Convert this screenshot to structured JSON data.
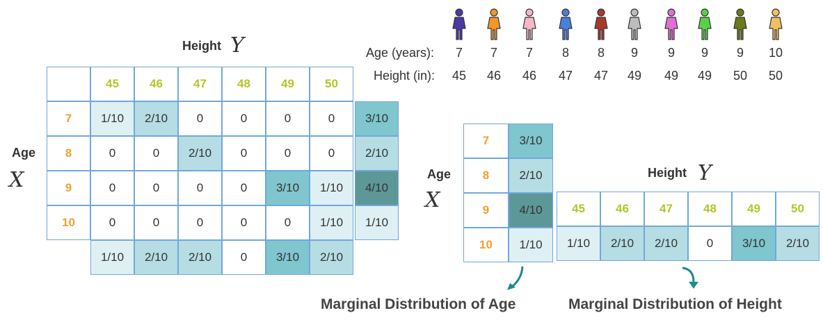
{
  "joint": {
    "height_label": "Height",
    "height_var": "Y",
    "age_label": "Age",
    "age_var": "X",
    "heights": [
      "45",
      "46",
      "47",
      "48",
      "49",
      "50"
    ],
    "ages": [
      "7",
      "8",
      "9",
      "10"
    ],
    "rows": [
      [
        "1/10",
        "2/10",
        "0",
        "0",
        "0",
        "0"
      ],
      [
        "0",
        "0",
        "2/10",
        "0",
        "0",
        "0"
      ],
      [
        "0",
        "0",
        "0",
        "0",
        "3/10",
        "1/10"
      ],
      [
        "0",
        "0",
        "0",
        "0",
        "0",
        "1/10"
      ]
    ],
    "row_marginals": [
      "3/10",
      "2/10",
      "4/10",
      "1/10"
    ],
    "col_marginals": [
      "1/10",
      "2/10",
      "2/10",
      "0",
      "3/10",
      "2/10"
    ]
  },
  "sequence": {
    "age_label": "Age (years):",
    "height_label": "Height (in):",
    "ages": [
      "7",
      "7",
      "7",
      "8",
      "8",
      "9",
      "9",
      "9",
      "9",
      "10"
    ],
    "heights": [
      "45",
      "46",
      "46",
      "47",
      "47",
      "49",
      "49",
      "49",
      "50",
      "50"
    ],
    "figure_colors": [
      "#4a3aa8",
      "#f0982a",
      "#f4b8c8",
      "#4a7fd8",
      "#a83a2a",
      "#bdbdbd",
      "#e070d8",
      "#5ad04a",
      "#6b7a1a",
      "#f2c060"
    ]
  },
  "age_marginal": {
    "label": "Age",
    "var": "X",
    "ages": [
      "7",
      "8",
      "9",
      "10"
    ],
    "values": [
      "3/10",
      "2/10",
      "4/10",
      "1/10"
    ],
    "caption": "Marginal Distribution of Age"
  },
  "height_marginal": {
    "label": "Height",
    "var": "Y",
    "heights": [
      "45",
      "46",
      "47",
      "48",
      "49",
      "50"
    ],
    "values": [
      "1/10",
      "2/10",
      "2/10",
      "0",
      "3/10",
      "2/10"
    ],
    "caption": "Marginal Distribution of Height"
  },
  "colors": {
    "border": "#6fa8dc",
    "fill_1": "#dff0f4",
    "fill_2": "#b5dde3",
    "fill_3": "#7fc6ce",
    "fill_4": "#5e9797",
    "arrow": "#1f8a8a",
    "header_text": "#b5c42a",
    "age_text": "#f0a030"
  }
}
